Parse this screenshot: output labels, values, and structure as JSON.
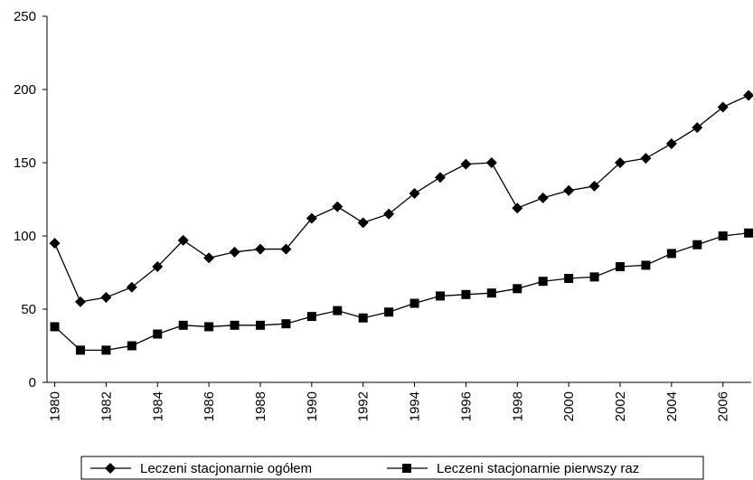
{
  "chart_data": {
    "type": "line",
    "x": [
      1980,
      1981,
      1982,
      1983,
      1984,
      1985,
      1986,
      1987,
      1988,
      1989,
      1990,
      1991,
      1992,
      1993,
      1994,
      1995,
      1996,
      1997,
      1998,
      1999,
      2000,
      2001,
      2002,
      2003,
      2004,
      2005,
      2006,
      2007
    ],
    "series": [
      {
        "name": "Leczeni stacjonarnie ogółem",
        "color": "#000000",
        "marker": "diamond",
        "values": [
          95,
          55,
          58,
          65,
          79,
          97,
          85,
          89,
          91,
          91,
          112,
          120,
          109,
          115,
          129,
          140,
          149,
          150,
          119,
          126,
          131,
          134,
          150,
          153,
          163,
          174,
          188,
          196
        ]
      },
      {
        "name": "Leczeni stacjonarnie pierwszy raz",
        "color": "#000000",
        "marker": "square",
        "values": [
          38,
          22,
          22,
          25,
          33,
          39,
          38,
          39,
          39,
          40,
          45,
          49,
          44,
          48,
          54,
          59,
          60,
          61,
          64,
          69,
          71,
          72,
          79,
          80,
          88,
          94,
          100,
          102
        ]
      }
    ],
    "xlim": [
      1979.7,
      2007.1
    ],
    "xticks": [
      1980,
      1982,
      1984,
      1986,
      1988,
      1990,
      1992,
      1994,
      1996,
      1998,
      2000,
      2002,
      2004,
      2006
    ],
    "ylim": [
      0,
      250
    ],
    "yticks": [
      0,
      50,
      100,
      150,
      200,
      250
    ],
    "grid": false,
    "legend": "bottom"
  }
}
